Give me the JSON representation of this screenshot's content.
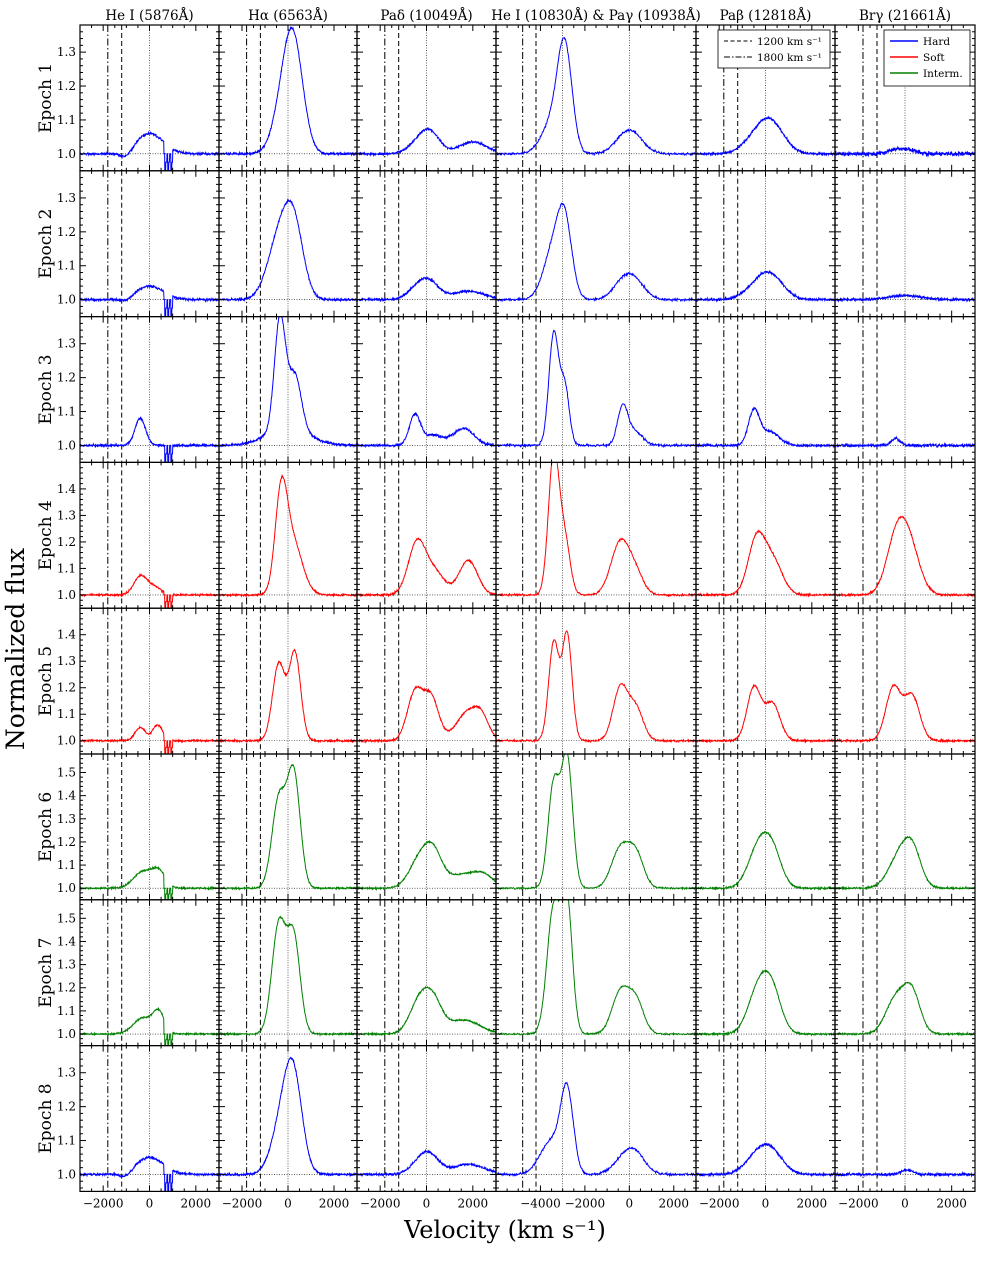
{
  "figure": {
    "ylabel": "Normalized flux",
    "xlabel": "Velocity (km s⁻¹)"
  },
  "legend_lines": [
    {
      "label": "1200 km s⁻¹",
      "style": "dashed"
    },
    {
      "label": "1800 km s⁻¹",
      "style": "dashdot"
    }
  ],
  "legend_states": [
    {
      "label": "Hard",
      "color": "#0000ff"
    },
    {
      "label": "Soft",
      "color": "#ff0000"
    },
    {
      "label": "Interm.",
      "color": "#008000"
    }
  ],
  "chart_data": {
    "type": "line",
    "columns": [
      {
        "title": "He I (5876Å)",
        "xlim": [
          -3000,
          3000
        ],
        "xticks": [
          -2000,
          0,
          2000
        ],
        "line_centers": [
          0
        ]
      },
      {
        "title": "Hα (6563Å)",
        "xlim": [
          -3000,
          3000
        ],
        "xticks": [
          -2000,
          0,
          2000
        ],
        "line_centers": [
          0
        ]
      },
      {
        "title": "Paδ (10049Å)",
        "xlim": [
          -3000,
          3000
        ],
        "xticks": [
          -2000,
          0,
          2000
        ],
        "line_centers": [
          0
        ]
      },
      {
        "title": "He I (10830Å) & Paγ (10938Å)",
        "xlim": [
          -6000,
          3000
        ],
        "xticks": [
          -4000,
          -2000,
          0,
          2000
        ],
        "line_centers": [
          -3000,
          0
        ]
      },
      {
        "title": "Paβ (12818Å)",
        "xlim": [
          -3000,
          3000
        ],
        "xticks": [
          -2000,
          0,
          2000
        ],
        "line_centers": [
          0
        ]
      },
      {
        "title": "Brγ (21661Å)",
        "xlim": [
          -3000,
          3000
        ],
        "xticks": [
          -2000,
          0,
          2000
        ],
        "line_centers": [
          0
        ]
      }
    ],
    "vlines": [
      {
        "x": -1800,
        "style": "dashdot"
      },
      {
        "x": -1200,
        "style": "dashed"
      }
    ],
    "epochs": [
      {
        "label": "Epoch 1",
        "state": "Hard",
        "ylim": [
          0.95,
          1.38
        ],
        "yticks": [
          1.0,
          1.1,
          1.2,
          1.3
        ],
        "profiles": [
          {
            "comps": [
              [
                0,
                0.06,
                600
              ]
            ],
            "absorb": [
              [
                -1000,
                0.02,
                250
              ]
            ],
            "notch": true
          },
          {
            "comps": [
              [
                -200,
                0.12,
                450
              ],
              [
                250,
                0.29,
                420
              ]
            ]
          },
          {
            "comps": [
              [
                -200,
                0.04,
                500
              ],
              [
                200,
                0.04,
                400
              ],
              [
                2000,
                0.035,
                600
              ]
            ]
          },
          {
            "comps": [
              [
                -3400,
                0.1,
                500
              ],
              [
                -2900,
                0.28,
                320
              ],
              [
                0,
                0.07,
                550
              ]
            ]
          },
          {
            "comps": [
              [
                -300,
                0.05,
                600
              ],
              [
                300,
                0.07,
                550
              ]
            ]
          },
          {
            "comps": [
              [
                -400,
                0.012,
                300
              ],
              [
                200,
                0.012,
                300
              ]
            ],
            "noise": 0.006
          }
        ]
      },
      {
        "label": "Epoch 2",
        "state": "Hard",
        "ylim": [
          0.95,
          1.38
        ],
        "yticks": [
          1.0,
          1.1,
          1.2,
          1.3
        ],
        "profiles": [
          {
            "comps": [
              [
                0,
                0.04,
                600
              ]
            ],
            "absorb": [
              [
                -1000,
                0.01,
                250
              ]
            ],
            "notch": true
          },
          {
            "comps": [
              [
                -400,
                0.17,
                500
              ],
              [
                250,
                0.2,
                420
              ]
            ]
          },
          {
            "comps": [
              [
                -300,
                0.04,
                450
              ],
              [
                200,
                0.035,
                400
              ],
              [
                1800,
                0.025,
                700
              ]
            ]
          },
          {
            "comps": [
              [
                -3400,
                0.15,
                450
              ],
              [
                -2900,
                0.19,
                320
              ],
              [
                -300,
                0.05,
                450
              ],
              [
                300,
                0.045,
                450
              ]
            ]
          },
          {
            "comps": [
              [
                -200,
                0.045,
                600
              ],
              [
                300,
                0.045,
                550
              ]
            ]
          },
          {
            "comps": [
              [
                0,
                0.012,
                700
              ]
            ],
            "noise": 0.004
          }
        ]
      },
      {
        "label": "Epoch 3",
        "state": "Hard",
        "ylim": [
          0.95,
          1.38
        ],
        "yticks": [
          1.0,
          1.1,
          1.2,
          1.3
        ],
        "profiles": [
          {
            "comps": [
              [
                -400,
                0.08,
                230
              ]
            ],
            "notch": true
          },
          {
            "comps": [
              [
                -350,
                0.33,
                240
              ],
              [
                300,
                0.16,
                280
              ],
              [
                0,
                0.05,
                900
              ]
            ]
          },
          {
            "comps": [
              [
                -500,
                0.09,
                240
              ],
              [
                300,
                0.03,
                400
              ],
              [
                1600,
                0.05,
                450
              ]
            ]
          },
          {
            "comps": [
              [
                -3400,
                0.33,
                220
              ],
              [
                -2900,
                0.17,
                200
              ],
              [
                -300,
                0.11,
                230
              ],
              [
                250,
                0.04,
                350
              ]
            ]
          },
          {
            "comps": [
              [
                -500,
                0.1,
                240
              ],
              [
                200,
                0.04,
                400
              ]
            ]
          },
          {
            "comps": [
              [
                -400,
                0.02,
                200
              ]
            ],
            "noise": 0.004
          }
        ]
      },
      {
        "label": "Epoch 4",
        "state": "Soft",
        "ylim": [
          0.95,
          1.5
        ],
        "yticks": [
          1.0,
          1.1,
          1.2,
          1.3,
          1.4
        ],
        "profiles": [
          {
            "comps": [
              [
                -400,
                0.07,
                280
              ],
              [
                200,
                0.03,
                300
              ]
            ],
            "notch": true
          },
          {
            "comps": [
              [
                -300,
                0.34,
                260
              ],
              [
                200,
                0.2,
                420
              ]
            ]
          },
          {
            "comps": [
              [
                -400,
                0.2,
                380
              ],
              [
                400,
                0.08,
                400
              ],
              [
                1800,
                0.13,
                400
              ]
            ]
          },
          {
            "comps": [
              [
                -3400,
                0.53,
                240
              ],
              [
                -2900,
                0.2,
                240
              ],
              [
                -400,
                0.2,
                420
              ],
              [
                300,
                0.07,
                350
              ]
            ]
          },
          {
            "comps": [
              [
                -400,
                0.2,
                360
              ],
              [
                300,
                0.13,
                420
              ]
            ]
          },
          {
            "comps": [
              [
                -300,
                0.24,
                450
              ],
              [
                300,
                0.12,
                420
              ]
            ]
          }
        ]
      },
      {
        "label": "Epoch 5",
        "state": "Soft",
        "ylim": [
          0.95,
          1.5
        ],
        "yticks": [
          1.0,
          1.1,
          1.2,
          1.3,
          1.4
        ],
        "profiles": [
          {
            "comps": [
              [
                -400,
                0.05,
                220
              ],
              [
                350,
                0.06,
                220
              ]
            ],
            "notch": true
          },
          {
            "comps": [
              [
                -400,
                0.29,
                270
              ],
              [
                300,
                0.33,
                250
              ]
            ]
          },
          {
            "comps": [
              [
                -500,
                0.18,
                330
              ],
              [
                200,
                0.16,
                330
              ],
              [
                1800,
                0.11,
                500
              ],
              [
                2400,
                0.06,
                300
              ]
            ]
          },
          {
            "comps": [
              [
                -3400,
                0.37,
                230
              ],
              [
                -2800,
                0.4,
                220
              ],
              [
                -400,
                0.2,
                330
              ],
              [
                300,
                0.12,
                330
              ]
            ]
          },
          {
            "comps": [
              [
                -500,
                0.2,
                300
              ],
              [
                300,
                0.14,
                330
              ]
            ]
          },
          {
            "comps": [
              [
                -500,
                0.2,
                320
              ],
              [
                300,
                0.17,
                330
              ]
            ]
          }
        ]
      },
      {
        "label": "Epoch 6",
        "state": "Interm.",
        "ylim": [
          0.95,
          1.58
        ],
        "yticks": [
          1.0,
          1.1,
          1.2,
          1.3,
          1.4,
          1.5
        ],
        "profiles": [
          {
            "comps": [
              [
                -300,
                0.07,
                400
              ],
              [
                400,
                0.07,
                300
              ]
            ],
            "notch": true
          },
          {
            "comps": [
              [
                -400,
                0.38,
                300
              ],
              [
                250,
                0.49,
                280
              ]
            ]
          },
          {
            "comps": [
              [
                -300,
                0.12,
                450
              ],
              [
                300,
                0.13,
                380
              ],
              [
                1600,
                0.06,
                700
              ],
              [
                2500,
                0.04,
                400
              ]
            ]
          },
          {
            "comps": [
              [
                -3400,
                0.45,
                260
              ],
              [
                -2800,
                0.56,
                250
              ],
              [
                -400,
                0.17,
                400
              ],
              [
                300,
                0.14,
                350
              ]
            ]
          },
          {
            "comps": [
              [
                -300,
                0.17,
                450
              ],
              [
                300,
                0.14,
                400
              ]
            ]
          },
          {
            "comps": [
              [
                -300,
                0.12,
                450
              ],
              [
                300,
                0.16,
                380
              ]
            ]
          }
        ]
      },
      {
        "label": "Epoch 7",
        "state": "Interm.",
        "ylim": [
          0.95,
          1.58
        ],
        "yticks": [
          1.0,
          1.1,
          1.2,
          1.3,
          1.4,
          1.5
        ],
        "profiles": [
          {
            "comps": [
              [
                -300,
                0.07,
                400
              ],
              [
                400,
                0.09,
                250
              ]
            ],
            "notch": true
          },
          {
            "comps": [
              [
                -400,
                0.47,
                300
              ],
              [
                250,
                0.41,
                280
              ]
            ]
          },
          {
            "comps": [
              [
                -300,
                0.14,
                420
              ],
              [
                300,
                0.12,
                380
              ],
              [
                1600,
                0.06,
                700
              ]
            ]
          },
          {
            "comps": [
              [
                -3400,
                0.55,
                300
              ],
              [
                -2800,
                0.55,
                240
              ],
              [
                -400,
                0.18,
                380
              ],
              [
                300,
                0.14,
                350
              ]
            ]
          },
          {
            "comps": [
              [
                -300,
                0.19,
                450
              ],
              [
                300,
                0.16,
                400
              ]
            ]
          },
          {
            "comps": [
              [
                -400,
                0.15,
                430
              ],
              [
                300,
                0.17,
                360
              ]
            ]
          }
        ]
      },
      {
        "label": "Epoch 8",
        "state": "Hard",
        "ylim": [
          0.95,
          1.38
        ],
        "yticks": [
          1.0,
          1.1,
          1.2,
          1.3
        ],
        "profiles": [
          {
            "comps": [
              [
                0,
                0.05,
                600
              ]
            ],
            "absorb": [
              [
                -1000,
                0.015,
                250
              ]
            ],
            "notch": true
          },
          {
            "comps": [
              [
                -250,
                0.15,
                450
              ],
              [
                250,
                0.25,
                380
              ]
            ]
          },
          {
            "comps": [
              [
                -200,
                0.04,
                450
              ],
              [
                200,
                0.035,
                400
              ],
              [
                1800,
                0.03,
                700
              ]
            ]
          },
          {
            "comps": [
              [
                -3500,
                0.1,
                500
              ],
              [
                -2800,
                0.23,
                280
              ],
              [
                -200,
                0.045,
                500
              ],
              [
                300,
                0.045,
                450
              ]
            ]
          },
          {
            "comps": [
              [
                -300,
                0.055,
                550
              ],
              [
                300,
                0.05,
                500
              ]
            ]
          },
          {
            "comps": [
              [
                100,
                0.013,
                250
              ]
            ],
            "noise": 0.004
          }
        ]
      }
    ]
  }
}
